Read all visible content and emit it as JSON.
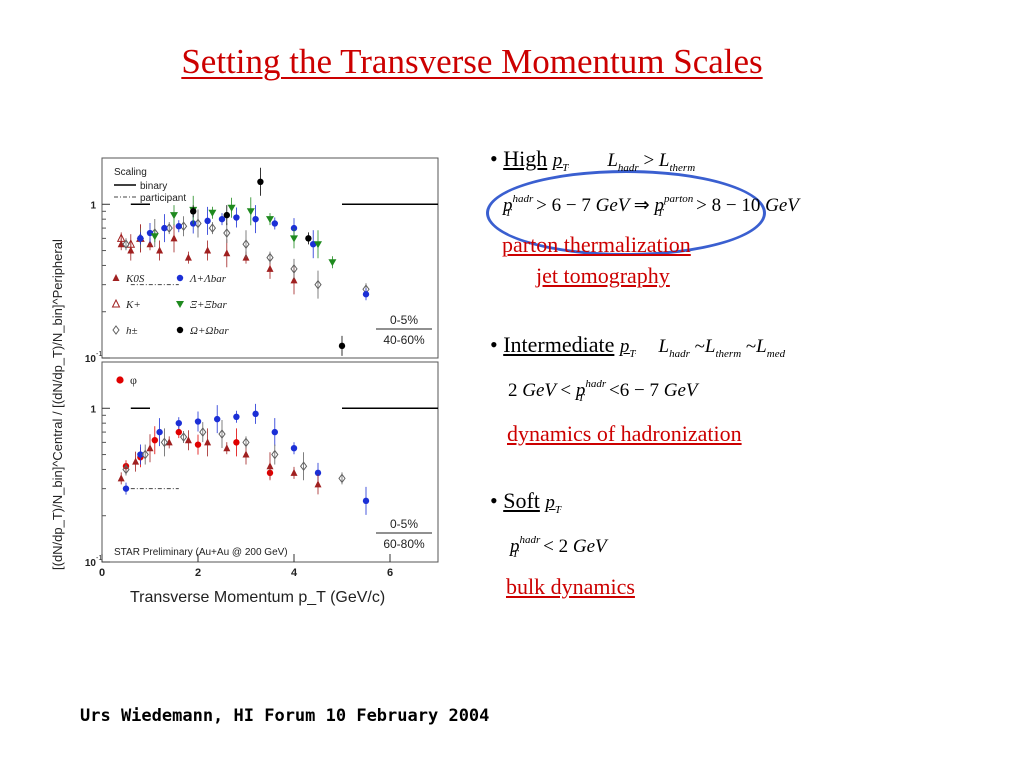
{
  "slide": {
    "title": "Setting the Transverse Momentum Scales",
    "footer": "Urs Wiedemann, HI Forum 10 February 2004"
  },
  "bullets": {
    "high": {
      "label": "High",
      "pt": "p",
      "pt_sub": "T",
      "relation": {
        "lhs": "L",
        "lhs_sub": "hadr",
        "op": ">",
        "rhs": "L",
        "rhs_sub": "therm"
      },
      "condition": {
        "p": "p",
        "p_sub": "T",
        "p_sup": "hadr",
        "gt": ">",
        "range": "6 − 7",
        "unit": "GeV",
        "implies": "⇒",
        "p2": "p",
        "p2_sub": "T",
        "p2_sup": "parton",
        "gt2": ">",
        "range2": "8 − 10",
        "unit2": "GeV"
      },
      "notes": [
        "parton thermalization",
        "jet tomography"
      ]
    },
    "intermediate": {
      "label": "Intermediate",
      "pt": "p",
      "pt_sub": "T",
      "relation": {
        "a": "L",
        "a_sub": "hadr",
        "s1": "~",
        "b": "L",
        "b_sub": "therm",
        "s2": "~",
        "c": "L",
        "c_sub": "med"
      },
      "condition": {
        "low": "2",
        "unit1": "GeV",
        "lt1": "<",
        "p": "p",
        "p_sub": "T",
        "p_sup": "hadr",
        "lt2": "<",
        "high": "6 − 7",
        "unit2": "GeV"
      },
      "notes": [
        "dynamics of hadronization"
      ]
    },
    "soft": {
      "label": "Soft",
      "pt": "p",
      "pt_sub": "T",
      "condition": {
        "p": "p",
        "p_sub": "T",
        "p_sup": "hadr",
        "lt": "<",
        "val": "2",
        "unit": "GeV"
      },
      "notes": [
        "bulk dynamics"
      ]
    }
  },
  "colors": {
    "title": "#cc0000",
    "notes": "#cc0000",
    "oval": "#3a5fd0"
  },
  "chart_data": {
    "type": "scatter",
    "xlabel": "Transverse Momentum p_T (GeV/c)",
    "ylabel": "[(dN/dp_T)/N_bin]^Central / [(dN/dp_T)/N_bin]^Peripheral",
    "xlim": [
      0,
      7
    ],
    "x_ticks": [
      "0",
      "2",
      "4",
      "6"
    ],
    "legend_title": "Scaling",
    "legend_lines": [
      "binary",
      "participant"
    ],
    "footnote": "STAR Preliminary (Au+Au @ 200 GeV)",
    "panels": [
      {
        "ylim_log": [
          0.1,
          2
        ],
        "y_ticks": [
          "1",
          "10^-1"
        ],
        "centrality": [
          "0-5%",
          "40-60%"
        ],
        "binary_level": 1.0,
        "series": [
          {
            "name": "K0S",
            "color": "#a02020",
            "marker": "triangle",
            "x": [
              0.4,
              0.6,
              0.8,
              1.0,
              1.2,
              1.5,
              1.8,
              2.2,
              2.6,
              3.0,
              3.5,
              4.0
            ],
            "y": [
              0.55,
              0.5,
              0.6,
              0.55,
              0.5,
              0.6,
              0.45,
              0.5,
              0.48,
              0.45,
              0.38,
              0.32
            ]
          },
          {
            "name": "K+",
            "color": "#a02020",
            "marker": "open-triangle",
            "x": [
              0.4,
              0.6,
              0.8
            ],
            "y": [
              0.6,
              0.55,
              0.6
            ]
          },
          {
            "name": "h±",
            "color": "#606060",
            "marker": "open-diamond",
            "x": [
              0.5,
              0.8,
              1.1,
              1.4,
              1.7,
              2.0,
              2.3,
              2.6,
              3.0,
              3.5,
              4.0,
              4.5,
              5.5
            ],
            "y": [
              0.55,
              0.6,
              0.65,
              0.7,
              0.72,
              0.75,
              0.7,
              0.65,
              0.55,
              0.45,
              0.38,
              0.3,
              0.28
            ]
          },
          {
            "name": "Λ+Λbar",
            "color": "#1b2fd6",
            "marker": "circle",
            "x": [
              0.8,
              1.0,
              1.3,
              1.6,
              1.9,
              2.2,
              2.5,
              2.8,
              3.2,
              3.6,
              4.0,
              4.4,
              5.5
            ],
            "y": [
              0.6,
              0.65,
              0.7,
              0.72,
              0.75,
              0.78,
              0.8,
              0.82,
              0.8,
              0.75,
              0.7,
              0.55,
              0.26
            ]
          },
          {
            "name": "Ξ+Ξbar",
            "color": "#1f8a1f",
            "marker": "triangle-down",
            "x": [
              1.1,
              1.5,
              1.9,
              2.3,
              2.7,
              3.1,
              3.5,
              4.0,
              4.5,
              4.8
            ],
            "y": [
              0.62,
              0.85,
              0.92,
              0.88,
              0.95,
              0.9,
              0.8,
              0.6,
              0.55,
              0.42
            ]
          },
          {
            "name": "Ω+Ωbar",
            "color": "#000000",
            "marker": "circle",
            "x": [
              1.9,
              2.6,
              3.3,
              4.3,
              5.0
            ],
            "y": [
              0.9,
              0.85,
              1.4,
              0.6,
              0.12
            ]
          }
        ]
      },
      {
        "ylim_log": [
          0.1,
          2
        ],
        "y_ticks": [
          "1",
          "10^-1"
        ],
        "centrality": [
          "0-5%",
          "60-80%"
        ],
        "binary_level": 1.0,
        "series": [
          {
            "name": "φ",
            "color": "#e00000",
            "marker": "circle",
            "x": [
              0.5,
              0.8,
              1.1,
              1.6,
              2.0,
              2.8,
              3.5
            ],
            "y": [
              0.42,
              0.48,
              0.62,
              0.7,
              0.58,
              0.6,
              0.38
            ]
          },
          {
            "name": "Λ+Λbar",
            "color": "#1b2fd6",
            "marker": "circle",
            "x": [
              0.5,
              0.8,
              1.2,
              1.6,
              2.0,
              2.4,
              2.8,
              3.2,
              3.6,
              4.0,
              4.5,
              5.5
            ],
            "y": [
              0.3,
              0.5,
              0.7,
              0.8,
              0.82,
              0.85,
              0.88,
              0.92,
              0.7,
              0.55,
              0.38,
              0.25
            ]
          },
          {
            "name": "K0S",
            "color": "#a02020",
            "marker": "triangle",
            "x": [
              0.4,
              0.7,
              1.0,
              1.4,
              1.8,
              2.2,
              2.6,
              3.0,
              3.5,
              4.0,
              4.5
            ],
            "y": [
              0.35,
              0.45,
              0.55,
              0.6,
              0.62,
              0.6,
              0.55,
              0.5,
              0.42,
              0.38,
              0.32
            ]
          },
          {
            "name": "h±",
            "color": "#606060",
            "marker": "open-diamond",
            "x": [
              0.5,
              0.9,
              1.3,
              1.7,
              2.1,
              2.5,
              3.0,
              3.6,
              4.2,
              5.0
            ],
            "y": [
              0.4,
              0.5,
              0.6,
              0.65,
              0.7,
              0.68,
              0.6,
              0.5,
              0.42,
              0.35
            ]
          }
        ]
      }
    ]
  }
}
